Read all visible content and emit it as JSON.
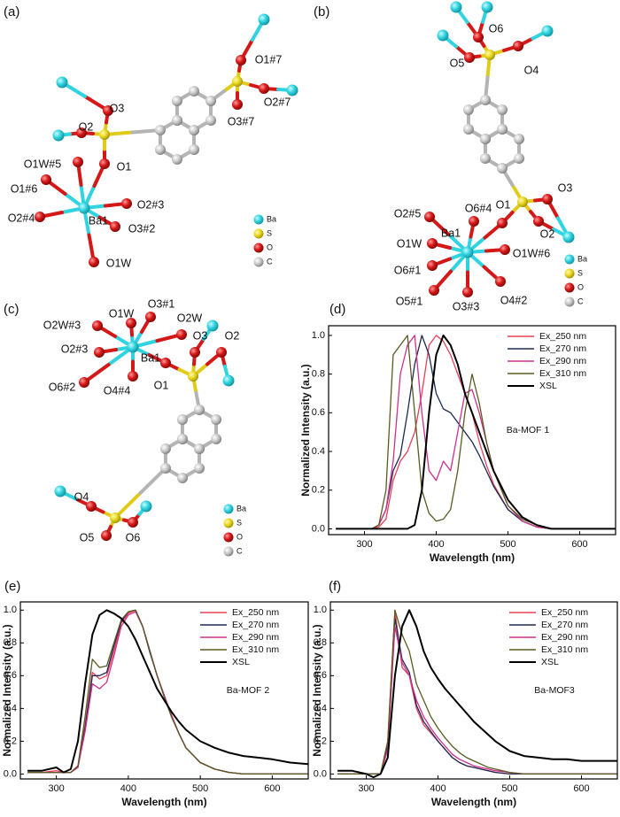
{
  "structures": [
    {
      "panel": "(a)",
      "atom_labels": [
        "O3",
        "O2",
        "O1",
        "O1W#5",
        "O1#6",
        "O2#4",
        "Ba1",
        "O2#3",
        "O3#2",
        "O1W",
        "O1#7",
        "O2#7",
        "O3#7"
      ],
      "legend": [
        "Ba",
        "S",
        "O",
        "C"
      ]
    },
    {
      "panel": "(b)",
      "atom_labels": [
        "O6",
        "O5",
        "O4",
        "O1",
        "O3",
        "O2",
        "O2#5",
        "O6#4",
        "O1W",
        "Ba1",
        "O1W#6",
        "O6#1",
        "O5#1",
        "O3#3",
        "O4#2"
      ],
      "legend": [
        "Ba",
        "S",
        "O",
        "C"
      ]
    },
    {
      "panel": "(c)",
      "atom_labels": [
        "O2W#3",
        "O1W",
        "O3#1",
        "O2W",
        "O2#3",
        "Ba1",
        "O6#2",
        "O4#4",
        "O1",
        "O3",
        "O2",
        "O4",
        "O5",
        "O6"
      ],
      "legend": [
        "Ba",
        "S",
        "O",
        "C"
      ]
    }
  ],
  "chart_data": [
    {
      "type": "line",
      "panel": "(d)",
      "annotation": "Ba-MOF 1",
      "x_label": "Wavelength (nm)",
      "y_label": "Normalized Intensity (a.u.)",
      "x": [
        260,
        280,
        300,
        310,
        320,
        330,
        340,
        350,
        360,
        370,
        380,
        390,
        400,
        410,
        420,
        430,
        440,
        450,
        460,
        470,
        480,
        500,
        520,
        540,
        560,
        580,
        600,
        625,
        650
      ],
      "xlim": [
        250,
        650
      ],
      "xticks": [
        300,
        400,
        500,
        600
      ],
      "ylim": [
        -0.03,
        1.05
      ],
      "yticks": [
        {
          "value": 0,
          "label": "0.0"
        },
        0.2,
        0.4,
        0.6,
        0.8,
        {
          "value": 1,
          "label": "1.0"
        }
      ],
      "legend": "upper right",
      "series": [
        {
          "name": "Ex_250 nm",
          "color": "#e8405a",
          "values": [
            0,
            0,
            0,
            0,
            0.01,
            0.05,
            0.25,
            0.35,
            0.4,
            0.5,
            0.7,
            0.95,
            1.0,
            0.97,
            0.9,
            0.8,
            0.7,
            0.6,
            0.45,
            0.33,
            0.23,
            0.1,
            0.04,
            0.01,
            0,
            0,
            0,
            0,
            0
          ]
        },
        {
          "name": "Ex_270 nm",
          "color": "#1c2a52",
          "values": [
            0,
            0,
            0,
            0,
            0.02,
            0.1,
            0.3,
            0.38,
            0.6,
            0.85,
            1.0,
            0.9,
            0.7,
            0.62,
            0.6,
            0.55,
            0.5,
            0.45,
            0.38,
            0.3,
            0.22,
            0.1,
            0.04,
            0.01,
            0,
            0,
            0,
            0,
            0
          ]
        },
        {
          "name": "Ex_290 nm",
          "color": "#d0308c",
          "values": [
            0,
            0,
            0,
            0,
            0.02,
            0.1,
            0.35,
            0.8,
            0.95,
            1.0,
            0.6,
            0.3,
            0.25,
            0.35,
            0.3,
            0.5,
            0.7,
            0.72,
            0.6,
            0.45,
            0.3,
            0.12,
            0.04,
            0.01,
            0,
            0,
            0,
            0,
            0
          ]
        },
        {
          "name": "Ex_310 nm",
          "color": "#5a5a22",
          "values": [
            0,
            0,
            0,
            0,
            0.02,
            0.2,
            0.9,
            0.95,
            1.0,
            0.6,
            0.2,
            0.08,
            0.04,
            0.05,
            0.1,
            0.3,
            0.6,
            0.8,
            0.65,
            0.45,
            0.3,
            0.12,
            0.05,
            0.02,
            0,
            0,
            0,
            0,
            0
          ]
        },
        {
          "name": "XSL",
          "color": "#000000",
          "values": [
            0,
            0,
            0,
            0,
            0,
            0,
            0,
            0,
            0,
            0.02,
            0.2,
            0.6,
            0.9,
            1.0,
            0.95,
            0.85,
            0.7,
            0.6,
            0.5,
            0.4,
            0.3,
            0.15,
            0.06,
            0.02,
            0,
            0,
            0,
            0,
            0
          ]
        }
      ]
    },
    {
      "type": "line",
      "panel": "(e)",
      "annotation": "Ba-MOF 2",
      "x_label": "Wavelength (nm)",
      "y_label": "Normalized Intensity (a.u.)",
      "x": [
        260,
        280,
        300,
        310,
        320,
        330,
        340,
        350,
        360,
        370,
        380,
        390,
        400,
        410,
        420,
        430,
        440,
        450,
        460,
        470,
        480,
        500,
        520,
        540,
        560,
        580,
        600,
        625,
        650
      ],
      "xlim": [
        250,
        650
      ],
      "xticks": [
        300,
        400,
        500,
        600
      ],
      "ylim": [
        -0.03,
        1.05
      ],
      "yticks": [
        {
          "value": 0,
          "label": "0.0"
        },
        0.2,
        0.4,
        0.6,
        0.8,
        {
          "value": 1,
          "label": "1.0"
        }
      ],
      "legend": "upper right",
      "series": [
        {
          "name": "Ex_250 nm",
          "color": "#e8405a",
          "values": [
            0.01,
            0.01,
            0.02,
            0.01,
            0.01,
            0.05,
            0.3,
            0.62,
            0.58,
            0.6,
            0.75,
            0.92,
            0.98,
            1.0,
            0.9,
            0.75,
            0.6,
            0.48,
            0.36,
            0.25,
            0.16,
            0.07,
            0.03,
            0.01,
            0,
            0,
            0,
            0,
            0
          ]
        },
        {
          "name": "Ex_270 nm",
          "color": "#1c2a52",
          "values": [
            0.01,
            0.01,
            0.01,
            0.01,
            0.01,
            0.04,
            0.28,
            0.6,
            0.6,
            0.62,
            0.78,
            0.93,
            0.99,
            1.0,
            0.9,
            0.74,
            0.6,
            0.47,
            0.35,
            0.25,
            0.16,
            0.07,
            0.03,
            0.01,
            0,
            0,
            0,
            0,
            0
          ]
        },
        {
          "name": "Ex_290 nm",
          "color": "#d0308c",
          "values": [
            0.01,
            0.01,
            0.01,
            0.01,
            0.01,
            0.04,
            0.26,
            0.55,
            0.52,
            0.56,
            0.72,
            0.9,
            0.97,
            0.99,
            0.9,
            0.75,
            0.6,
            0.48,
            0.36,
            0.25,
            0.16,
            0.07,
            0.03,
            0.01,
            0,
            0,
            0,
            0,
            0
          ]
        },
        {
          "name": "Ex_310 nm",
          "color": "#5a5a22",
          "values": [
            0.01,
            0.01,
            0.01,
            0.01,
            0.01,
            0.05,
            0.35,
            0.7,
            0.65,
            0.66,
            0.8,
            0.94,
            0.99,
            1.0,
            0.9,
            0.75,
            0.6,
            0.47,
            0.35,
            0.25,
            0.16,
            0.07,
            0.03,
            0.01,
            0,
            0,
            0,
            0,
            0
          ]
        },
        {
          "name": "XSL",
          "color": "#000000",
          "values": [
            0.02,
            0.02,
            0.04,
            0.01,
            0.03,
            0.2,
            0.55,
            0.85,
            0.97,
            1.0,
            0.98,
            0.95,
            0.9,
            0.82,
            0.72,
            0.62,
            0.52,
            0.45,
            0.38,
            0.32,
            0.27,
            0.2,
            0.16,
            0.13,
            0.11,
            0.1,
            0.09,
            0.07,
            0.06
          ]
        }
      ]
    },
    {
      "type": "line",
      "panel": "(f)",
      "annotation": "Ba-MOF3",
      "x_label": "Wavelength (nm)",
      "y_label": "Normalized Intensity (a.u.)",
      "x": [
        260,
        280,
        300,
        310,
        320,
        330,
        340,
        350,
        360,
        370,
        380,
        390,
        400,
        410,
        420,
        430,
        440,
        450,
        460,
        470,
        480,
        500,
        520,
        540,
        560,
        580,
        600,
        625,
        650
      ],
      "xlim": [
        250,
        650
      ],
      "xticks": [
        300,
        400,
        500,
        600
      ],
      "ylim": [
        -0.03,
        1.05
      ],
      "yticks": [
        {
          "value": 0,
          "label": "0.0"
        },
        0.2,
        0.4,
        0.6,
        0.8,
        {
          "value": 1,
          "label": "1.0"
        }
      ],
      "legend": "upper right",
      "series": [
        {
          "name": "Ex_250 nm",
          "color": "#e8405a",
          "values": [
            0,
            0,
            0,
            0,
            0,
            0.2,
            1.0,
            0.65,
            0.6,
            0.4,
            0.3,
            0.25,
            0.2,
            0.15,
            0.1,
            0.07,
            0.05,
            0.04,
            0.03,
            0.02,
            0.01,
            0,
            0,
            0,
            0,
            0,
            0,
            0,
            0
          ]
        },
        {
          "name": "Ex_270 nm",
          "color": "#1c2a52",
          "values": [
            0,
            0,
            0,
            0,
            0,
            0.18,
            0.95,
            0.7,
            0.62,
            0.42,
            0.32,
            0.26,
            0.2,
            0.15,
            0.1,
            0.07,
            0.05,
            0.04,
            0.03,
            0.02,
            0.01,
            0,
            0,
            0,
            0,
            0,
            0,
            0,
            0
          ]
        },
        {
          "name": "Ex_290 nm",
          "color": "#d0308c",
          "values": [
            0,
            0,
            0,
            0,
            0,
            0.15,
            0.9,
            0.68,
            0.6,
            0.45,
            0.35,
            0.28,
            0.22,
            0.17,
            0.12,
            0.09,
            0.07,
            0.05,
            0.04,
            0.03,
            0.02,
            0.01,
            0,
            0,
            0,
            0,
            0,
            0,
            0
          ]
        },
        {
          "name": "Ex_310 nm",
          "color": "#5a5a22",
          "values": [
            0,
            0,
            0,
            0,
            0,
            0.2,
            1.0,
            0.85,
            0.75,
            0.55,
            0.45,
            0.35,
            0.28,
            0.22,
            0.17,
            0.13,
            0.1,
            0.08,
            0.06,
            0.04,
            0.03,
            0.01,
            0,
            0,
            0,
            0,
            0,
            0,
            0
          ]
        },
        {
          "name": "XSL",
          "color": "#000000",
          "values": [
            0.02,
            0.02,
            0,
            -0.02,
            0,
            0.1,
            0.6,
            0.9,
            1.0,
            0.9,
            0.75,
            0.65,
            0.58,
            0.52,
            0.47,
            0.42,
            0.37,
            0.32,
            0.28,
            0.24,
            0.2,
            0.14,
            0.11,
            0.1,
            0.09,
            0.09,
            0.08,
            0.08,
            0.08
          ]
        }
      ]
    }
  ]
}
